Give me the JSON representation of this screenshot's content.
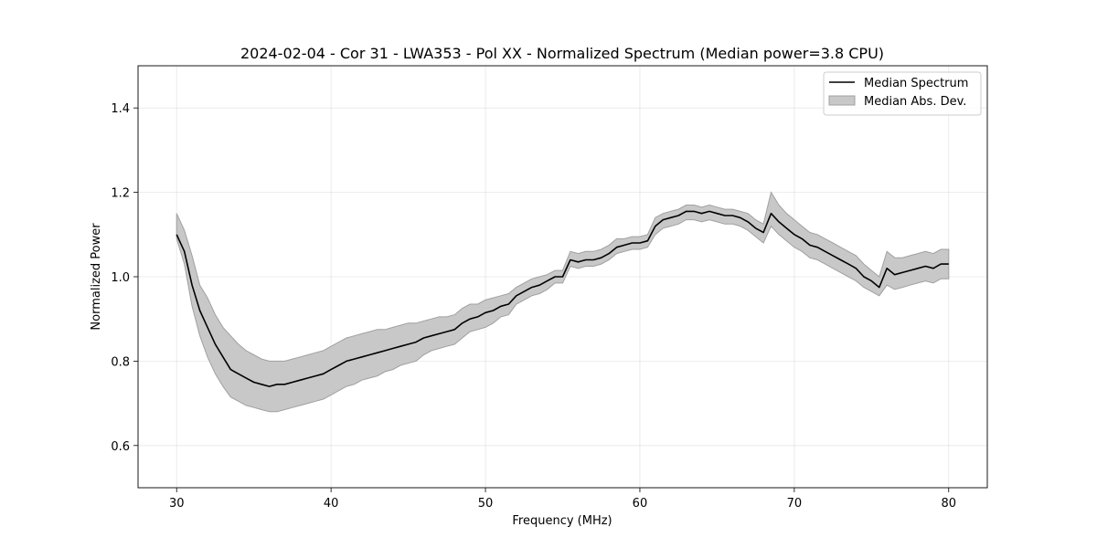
{
  "chart_data": {
    "type": "line",
    "title": "2024-02-04 - Cor 31 - LWA353 - Pol XX - Normalized Spectrum (Median power=3.8 CPU)",
    "xlabel": "Frequency (MHz)",
    "ylabel": "Normalized Power",
    "xlim": [
      27.5,
      82.5
    ],
    "ylim": [
      0.5,
      1.5
    ],
    "xticks": [
      30,
      40,
      50,
      60,
      70,
      80
    ],
    "yticks": [
      0.6,
      0.8,
      1.0,
      1.2,
      1.4
    ],
    "xtick_labels": [
      "30",
      "40",
      "50",
      "60",
      "70",
      "80"
    ],
    "ytick_labels": [
      "0.6",
      "0.8",
      "1.0",
      "1.2",
      "1.4"
    ],
    "grid": true,
    "legend_position": "top-right",
    "series": [
      {
        "name": "Median Spectrum",
        "kind": "line",
        "color": "#000000",
        "x": [
          30.0,
          30.5,
          31.0,
          31.5,
          32.0,
          32.5,
          33.0,
          33.5,
          34.0,
          34.5,
          35.0,
          35.5,
          36.0,
          36.5,
          37.0,
          37.5,
          38.0,
          38.5,
          39.0,
          39.5,
          40.0,
          40.5,
          41.0,
          41.5,
          42.0,
          42.5,
          43.0,
          43.5,
          44.0,
          44.5,
          45.0,
          45.5,
          46.0,
          46.5,
          47.0,
          47.5,
          48.0,
          48.5,
          49.0,
          49.5,
          50.0,
          50.5,
          51.0,
          51.5,
          52.0,
          52.5,
          53.0,
          53.5,
          54.0,
          54.5,
          55.0,
          55.5,
          56.0,
          56.5,
          57.0,
          57.5,
          58.0,
          58.5,
          59.0,
          59.5,
          60.0,
          60.5,
          61.0,
          61.5,
          62.0,
          62.5,
          63.0,
          63.5,
          64.0,
          64.5,
          65.0,
          65.5,
          66.0,
          66.5,
          67.0,
          67.5,
          68.0,
          68.5,
          69.0,
          69.5,
          70.0,
          70.5,
          71.0,
          71.5,
          72.0,
          72.5,
          73.0,
          73.5,
          74.0,
          74.5,
          75.0,
          75.5,
          76.0,
          76.5,
          77.0,
          77.5,
          78.0,
          78.5,
          79.0,
          79.5,
          80.0
        ],
        "values": [
          1.1,
          1.06,
          0.98,
          0.92,
          0.88,
          0.84,
          0.81,
          0.78,
          0.77,
          0.76,
          0.75,
          0.745,
          0.74,
          0.745,
          0.745,
          0.75,
          0.755,
          0.76,
          0.765,
          0.77,
          0.78,
          0.79,
          0.8,
          0.805,
          0.81,
          0.815,
          0.82,
          0.825,
          0.83,
          0.835,
          0.84,
          0.845,
          0.855,
          0.86,
          0.865,
          0.87,
          0.875,
          0.89,
          0.9,
          0.905,
          0.915,
          0.92,
          0.93,
          0.935,
          0.955,
          0.965,
          0.975,
          0.98,
          0.99,
          1.0,
          1.0,
          1.04,
          1.035,
          1.04,
          1.04,
          1.045,
          1.055,
          1.07,
          1.075,
          1.08,
          1.08,
          1.085,
          1.12,
          1.135,
          1.14,
          1.145,
          1.155,
          1.155,
          1.15,
          1.155,
          1.15,
          1.145,
          1.145,
          1.14,
          1.13,
          1.115,
          1.105,
          1.15,
          1.13,
          1.115,
          1.1,
          1.09,
          1.075,
          1.07,
          1.06,
          1.05,
          1.04,
          1.03,
          1.02,
          1.0,
          0.99,
          0.975,
          1.02,
          1.005,
          1.01,
          1.015,
          1.02,
          1.025,
          1.02,
          1.03,
          1.03
        ]
      },
      {
        "name": "Median Abs. Dev.",
        "kind": "band",
        "color": "#c8c8c8",
        "edge_color": "#a0a0a0",
        "x": [
          30.0,
          30.5,
          31.0,
          31.5,
          32.0,
          32.5,
          33.0,
          33.5,
          34.0,
          34.5,
          35.0,
          35.5,
          36.0,
          36.5,
          37.0,
          37.5,
          38.0,
          38.5,
          39.0,
          39.5,
          40.0,
          40.5,
          41.0,
          41.5,
          42.0,
          42.5,
          43.0,
          43.5,
          44.0,
          44.5,
          45.0,
          45.5,
          46.0,
          46.5,
          47.0,
          47.5,
          48.0,
          48.5,
          49.0,
          49.5,
          50.0,
          50.5,
          51.0,
          51.5,
          52.0,
          52.5,
          53.0,
          53.5,
          54.0,
          54.5,
          55.0,
          55.5,
          56.0,
          56.5,
          57.0,
          57.5,
          58.0,
          58.5,
          59.0,
          59.5,
          60.0,
          60.5,
          61.0,
          61.5,
          62.0,
          62.5,
          63.0,
          63.5,
          64.0,
          64.5,
          65.0,
          65.5,
          66.0,
          66.5,
          67.0,
          67.5,
          68.0,
          68.5,
          69.0,
          69.5,
          70.0,
          70.5,
          71.0,
          71.5,
          72.0,
          72.5,
          73.0,
          73.5,
          74.0,
          74.5,
          75.0,
          75.5,
          76.0,
          76.5,
          77.0,
          77.5,
          78.0,
          78.5,
          79.0,
          79.5,
          80.0
        ],
        "upper": [
          1.15,
          1.11,
          1.05,
          0.98,
          0.95,
          0.91,
          0.88,
          0.86,
          0.84,
          0.825,
          0.815,
          0.805,
          0.8,
          0.8,
          0.8,
          0.805,
          0.81,
          0.815,
          0.82,
          0.825,
          0.835,
          0.845,
          0.855,
          0.86,
          0.865,
          0.87,
          0.875,
          0.875,
          0.88,
          0.885,
          0.89,
          0.89,
          0.895,
          0.9,
          0.905,
          0.905,
          0.91,
          0.925,
          0.935,
          0.935,
          0.945,
          0.95,
          0.955,
          0.96,
          0.975,
          0.985,
          0.995,
          1.0,
          1.005,
          1.015,
          1.015,
          1.06,
          1.055,
          1.06,
          1.06,
          1.065,
          1.075,
          1.09,
          1.09,
          1.095,
          1.095,
          1.1,
          1.14,
          1.15,
          1.155,
          1.16,
          1.17,
          1.17,
          1.165,
          1.17,
          1.165,
          1.16,
          1.16,
          1.155,
          1.15,
          1.135,
          1.125,
          1.2,
          1.17,
          1.15,
          1.135,
          1.12,
          1.105,
          1.1,
          1.09,
          1.08,
          1.07,
          1.06,
          1.05,
          1.03,
          1.015,
          1.0,
          1.06,
          1.045,
          1.045,
          1.05,
          1.055,
          1.06,
          1.055,
          1.065,
          1.065
        ],
        "lower": [
          1.09,
          1.03,
          0.93,
          0.86,
          0.81,
          0.77,
          0.74,
          0.715,
          0.705,
          0.695,
          0.69,
          0.685,
          0.68,
          0.68,
          0.685,
          0.69,
          0.695,
          0.7,
          0.705,
          0.71,
          0.72,
          0.73,
          0.74,
          0.745,
          0.755,
          0.76,
          0.765,
          0.775,
          0.78,
          0.79,
          0.795,
          0.8,
          0.815,
          0.825,
          0.83,
          0.835,
          0.84,
          0.855,
          0.87,
          0.875,
          0.88,
          0.89,
          0.905,
          0.91,
          0.935,
          0.945,
          0.955,
          0.96,
          0.97,
          0.985,
          0.985,
          1.025,
          1.02,
          1.025,
          1.025,
          1.03,
          1.04,
          1.055,
          1.06,
          1.065,
          1.065,
          1.07,
          1.1,
          1.115,
          1.12,
          1.125,
          1.135,
          1.135,
          1.13,
          1.135,
          1.13,
          1.125,
          1.125,
          1.12,
          1.11,
          1.095,
          1.08,
          1.12,
          1.1,
          1.085,
          1.07,
          1.06,
          1.045,
          1.04,
          1.03,
          1.02,
          1.01,
          1.0,
          0.99,
          0.975,
          0.965,
          0.955,
          0.98,
          0.97,
          0.975,
          0.98,
          0.985,
          0.99,
          0.985,
          0.995,
          0.995
        ]
      }
    ]
  }
}
